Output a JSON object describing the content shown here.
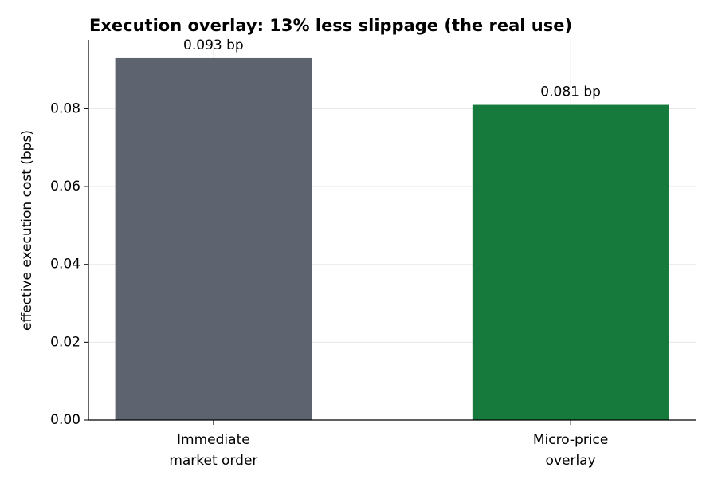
{
  "chart_data": {
    "type": "bar",
    "title": "Execution overlay: 13% less slippage (the real use)",
    "y_label": "effective execution cost (bps)",
    "categories": [
      "Immediate\nmarket order",
      "Micro-price\noverlay"
    ],
    "values": [
      0.093,
      0.081
    ],
    "value_labels": [
      "0.093 bp",
      "0.081 bp"
    ],
    "colors": [
      "#5d6470",
      "#157a3c"
    ],
    "ylim": [
      0,
      0.0977
    ],
    "yticks": [
      {
        "value": 0,
        "label": "0.00"
      },
      {
        "value": 0.02,
        "label": "0.02"
      },
      {
        "value": 0.04,
        "label": "0.04"
      },
      {
        "value": 0.06,
        "label": "0.06"
      },
      {
        "value": 0.08,
        "label": "0.08"
      }
    ],
    "grid": true
  }
}
